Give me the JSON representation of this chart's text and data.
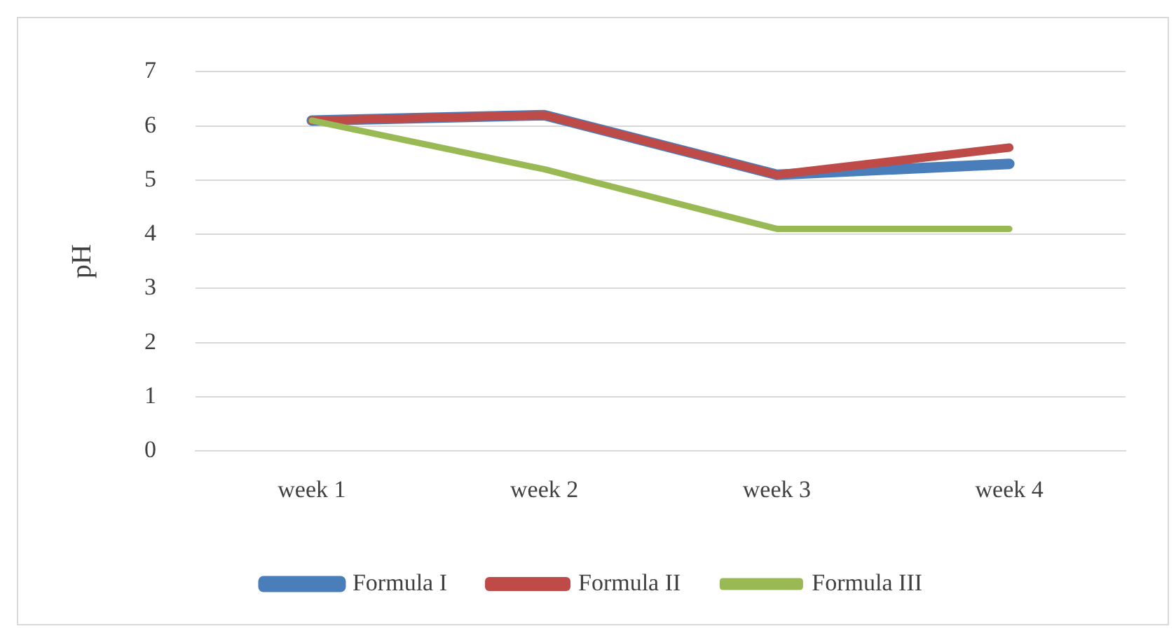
{
  "chart_data": {
    "type": "line",
    "ylabel": "pH",
    "categories": [
      "week 1",
      "week 2",
      "week 3",
      "week 4"
    ],
    "series": [
      {
        "name": "Formula I",
        "color": "#4a7ebb",
        "values": [
          6.1,
          6.2,
          5.1,
          5.3
        ]
      },
      {
        "name": "Formula II",
        "color": "#be4b48",
        "values": [
          6.1,
          6.2,
          5.1,
          5.6
        ]
      },
      {
        "name": "Formula III",
        "color": "#98b954",
        "values": [
          6.1,
          5.2,
          4.1,
          4.1
        ]
      }
    ],
    "ylim": [
      0,
      7
    ],
    "yticks": [
      0,
      1,
      2,
      3,
      4,
      5,
      6,
      7
    ],
    "grid": "y",
    "legend": "bottom",
    "marker": "none",
    "line_style": "solid"
  }
}
